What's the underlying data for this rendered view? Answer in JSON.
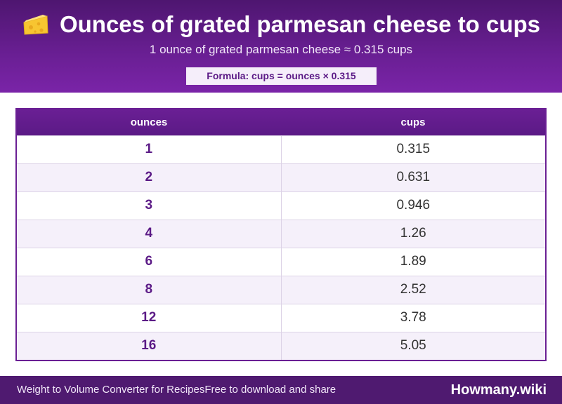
{
  "header": {
    "title": "Ounces of grated parmesan cheese to cups",
    "icon": "cheese-icon",
    "subtitle": "1 ounce of grated parmesan cheese ≈ 0.315 cups",
    "formula": "Formula: cups = ounces × 0.315"
  },
  "table": {
    "headers": [
      "ounces",
      "cups"
    ],
    "rows": [
      [
        "1",
        "0.315"
      ],
      [
        "2",
        "0.631"
      ],
      [
        "3",
        "0.946"
      ],
      [
        "4",
        "1.26"
      ],
      [
        "6",
        "1.89"
      ],
      [
        "8",
        "2.52"
      ],
      [
        "12",
        "3.78"
      ],
      [
        "16",
        "5.05"
      ]
    ]
  },
  "footer": {
    "left_a": "Weight to Volume Converter for Recipes",
    "left_b": "Free to download and share",
    "brand": "Howmany.wiki"
  },
  "colors": {
    "primary": "#6a1f94",
    "dark": "#4f1a70",
    "row_alt": "#f5f0fa"
  }
}
